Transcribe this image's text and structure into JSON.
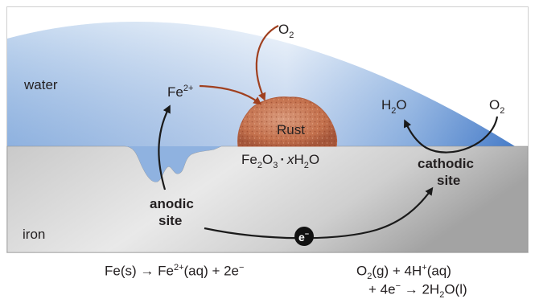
{
  "labels": {
    "water": "water",
    "iron": "iron",
    "o2_top": "O",
    "o2_top_sub": "2",
    "fe_ion": "Fe",
    "fe_ion_sup": "2+",
    "rust": "Rust",
    "rust_formula": {
      "a": "Fe",
      "a_sub": "2",
      "b": "O",
      "b_sub": "3",
      "dot": "·",
      "x": "x",
      "c": "H",
      "c_sub": "2",
      "d": "O"
    },
    "h2o": {
      "a": "H",
      "a_sub": "2",
      "b": "O"
    },
    "o2_right": "O",
    "o2_right_sub": "2",
    "anodic_site_line1": "anodic",
    "anodic_site_line2": "site",
    "cathodic_site_line1": "cathodic",
    "cathodic_site_line2": "site",
    "electron": "e",
    "electron_sup": "−"
  },
  "equations": {
    "anode": {
      "p1": "Fe(s) → Fe",
      "p1_sup": "2+",
      "p2": "(aq) + 2e",
      "p2_sup": "−"
    },
    "cathode": {
      "line1_a": "O",
      "line1_a_sub": "2",
      "line1_b": "(g) + 4H",
      "line1_b_sup": "+",
      "line1_c": "(aq)",
      "line2_a": "+ 4e",
      "line2_a_sup": "−",
      "line2_b": " → 2H",
      "line2_b_sub": "2",
      "line2_c": "O(l)"
    }
  },
  "colors": {
    "water_top": "#ecf3fb",
    "water_mid": "#a7c4e6",
    "water_deep": "#5b8fd1",
    "iron_light": "#e6e6e6",
    "iron_dark": "#9d9d9d",
    "rust": "#c97d5c",
    "rust_dark": "#9c4f35",
    "arrow_red": "#a0401f",
    "text_dark": "#231f20",
    "electron_bg": "#111111"
  }
}
